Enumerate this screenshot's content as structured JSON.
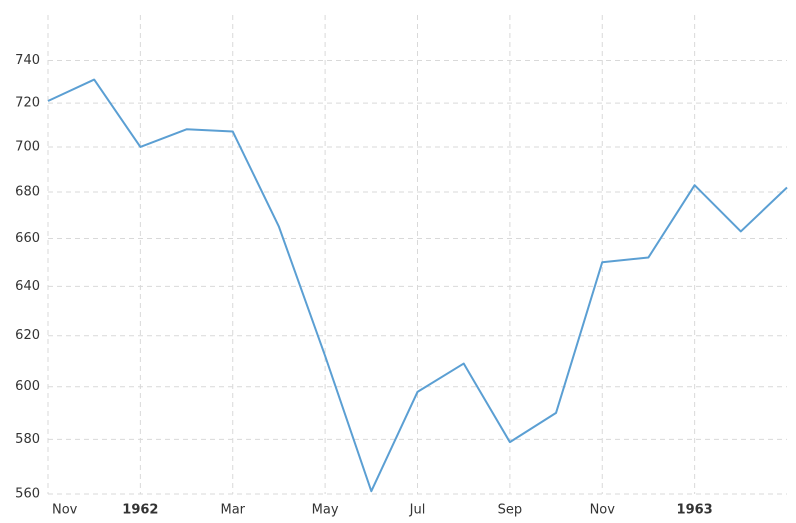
{
  "chart_data": {
    "type": "line",
    "categories": [
      "Nov",
      null,
      "1962",
      null,
      "Mar",
      null,
      "May",
      null,
      "Jul",
      null,
      "Sep",
      null,
      "Nov",
      null,
      "1963",
      null,
      null
    ],
    "series": [
      {
        "color": "#5b9fd3",
        "values": [
          721,
          731,
          700,
          708,
          707,
          665,
          612,
          561,
          598,
          609,
          579,
          590,
          650,
          652,
          683,
          663,
          682
        ]
      }
    ],
    "ylim": [
      560,
      762
    ],
    "yticks": [
      560,
      580,
      600,
      620,
      640,
      660,
      680,
      700,
      720,
      740
    ],
    "log_scale": true,
    "grid": true
  }
}
